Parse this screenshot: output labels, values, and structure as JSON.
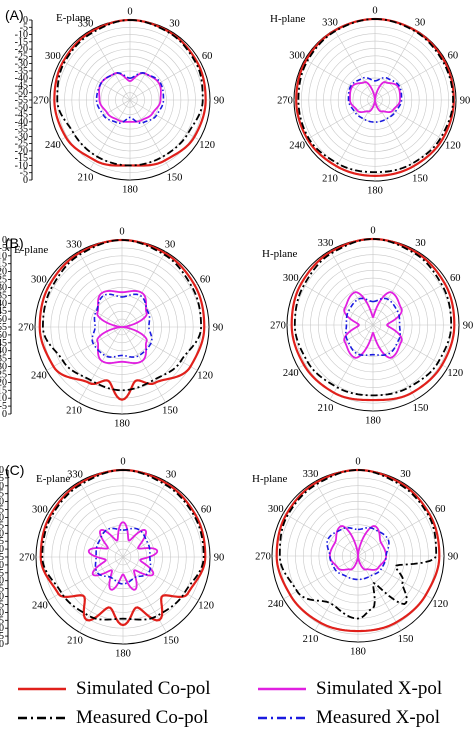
{
  "chart_data": [
    {
      "type": "polar",
      "panel": "(A)",
      "plane": "E-plane",
      "angle_labels": [
        "0",
        "30",
        "60",
        "90",
        "120",
        "150",
        "180",
        "210",
        "240",
        "270",
        "300",
        "330"
      ],
      "radial_ticks": [
        "0",
        "-5",
        "-10",
        "-15",
        "-20",
        "-25",
        "-30",
        "-35",
        "-40",
        "-45",
        "-50",
        "-55",
        "-50",
        "-45",
        "-40",
        "-35",
        "-30",
        "-25",
        "-20",
        "-15",
        "-10",
        "-5",
        "0"
      ],
      "rlim_db": [
        -55,
        0
      ],
      "series": [
        {
          "name": "Simulated Co-pol",
          "angles": [
            0,
            30,
            60,
            90,
            120,
            150,
            180,
            210,
            240,
            270,
            300,
            330
          ],
          "values_db": [
            0,
            -1,
            -2,
            -3,
            -4,
            -7,
            -10,
            -7,
            -4,
            -3,
            -2,
            -1
          ]
        },
        {
          "name": "Measured Co-pol",
          "angles": [
            0,
            30,
            60,
            90,
            120,
            150,
            180,
            210,
            240,
            270,
            300,
            330
          ],
          "values_db": [
            0,
            -1.5,
            -3,
            -5,
            -9,
            -10,
            -10,
            -10,
            -10,
            -5,
            -3,
            -2
          ]
        },
        {
          "name": "Simulated X-pol",
          "angles": [
            0,
            30,
            60,
            90,
            120,
            150,
            180,
            210,
            240,
            270,
            300,
            330
          ],
          "values_db": [
            -42,
            -34,
            -32,
            -34,
            -37,
            -39,
            -40,
            -39,
            -37,
            -34,
            -32,
            -34
          ]
        },
        {
          "name": "Measured X-pol",
          "angles": [
            0,
            30,
            60,
            90,
            120,
            150,
            180,
            210,
            240,
            270,
            300,
            330
          ],
          "values_db": [
            -40,
            -34,
            -31,
            -32,
            -34,
            -37,
            -43,
            -37,
            -34,
            -32,
            -32,
            -34
          ]
        }
      ]
    },
    {
      "type": "polar",
      "panel": "",
      "plane": "H-plane",
      "angle_labels": [
        "0",
        "30",
        "60",
        "90",
        "120",
        "150",
        "180",
        "210",
        "240",
        "270",
        "300",
        "330"
      ],
      "radial_ticks": [],
      "rlim_db": [
        -55,
        0
      ],
      "series": [
        {
          "name": "Simulated Co-pol",
          "angles": [
            0,
            30,
            60,
            90,
            120,
            150,
            180,
            210,
            240,
            270,
            300,
            330
          ],
          "values_db": [
            0,
            -0.5,
            -1,
            -1.5,
            -2,
            -3,
            -3.5,
            -3,
            -2,
            -1.5,
            -1,
            -0.5
          ]
        },
        {
          "name": "Measured Co-pol",
          "angles": [
            0,
            30,
            60,
            90,
            120,
            150,
            180,
            210,
            240,
            270,
            300,
            330
          ],
          "values_db": [
            0,
            -1,
            -2,
            -2,
            -3.5,
            -5,
            -6,
            -5,
            -3,
            -3,
            -2,
            -1
          ]
        },
        {
          "name": "Simulated X-pol",
          "angles": [
            0,
            30,
            60,
            90,
            120,
            150,
            180,
            210,
            240,
            270,
            300,
            330
          ],
          "values_db": [
            -55,
            -41,
            -37,
            -38,
            -41,
            -46,
            -55,
            -46,
            -41,
            -38,
            -37,
            -41
          ]
        },
        {
          "name": "Measured X-pol",
          "angles": [
            0,
            30,
            60,
            90,
            120,
            150,
            180,
            210,
            240,
            270,
            300,
            330
          ],
          "values_db": [
            -42,
            -38,
            -36,
            -37,
            -39,
            -40,
            -40,
            -40,
            -39,
            -37,
            -36,
            -38
          ]
        }
      ]
    },
    {
      "type": "polar",
      "panel": "(B)",
      "plane": "E-plane",
      "angle_labels": [
        "0",
        "30",
        "60",
        "90",
        "120",
        "150",
        "180",
        "210",
        "240",
        "270",
        "300",
        "330"
      ],
      "radial_ticks": [
        "0",
        "-5",
        "-10",
        "-15",
        "-20",
        "-25",
        "-30",
        "-35",
        "-40",
        "-45",
        "-50",
        "-55",
        "-50",
        "-45",
        "-40",
        "-35",
        "-30",
        "-25",
        "-20",
        "-15",
        "-10",
        "-5",
        "0"
      ],
      "rlim_db": [
        -55,
        0
      ],
      "series": [
        {
          "name": "Simulated Co-pol",
          "angles": [
            0,
            30,
            60,
            90,
            120,
            150,
            165,
            180,
            195,
            210,
            240,
            270,
            300,
            330
          ],
          "values_db": [
            0,
            -1,
            -2,
            -3,
            -5,
            -14,
            -20,
            -9,
            -20,
            -14,
            -5,
            -3,
            -2,
            -1
          ]
        },
        {
          "name": "Measured Co-pol",
          "angles": [
            0,
            30,
            60,
            90,
            120,
            150,
            180,
            210,
            240,
            270,
            300,
            330
          ],
          "values_db": [
            0,
            -2,
            -4,
            -5,
            -12,
            -16,
            -15,
            -16,
            -12,
            -5,
            -4,
            -2
          ]
        },
        {
          "name": "Simulated X-pol",
          "angles": [
            0,
            30,
            60,
            90,
            120,
            150,
            180,
            210,
            240,
            270,
            300,
            330
          ],
          "values_db": [
            -33,
            -30,
            -37,
            -55,
            -37,
            -30,
            -33,
            -30,
            -37,
            -55,
            -37,
            -30
          ]
        },
        {
          "name": "Measured X-pol",
          "angles": [
            0,
            30,
            60,
            90,
            120,
            150,
            180,
            210,
            240,
            270,
            300,
            330
          ],
          "values_db": [
            -36,
            -32,
            -36,
            -38,
            -34,
            -34,
            -37,
            -34,
            -34,
            -38,
            -36,
            -32
          ]
        }
      ]
    },
    {
      "type": "polar",
      "panel": "",
      "plane": "H-plane",
      "angle_labels": [
        "0",
        "30",
        "60",
        "90",
        "120",
        "150",
        "180",
        "210",
        "240",
        "270",
        "300",
        "330"
      ],
      "radial_ticks": [],
      "rlim_db": [
        -55,
        0
      ],
      "series": [
        {
          "name": "Simulated Co-pol",
          "angles": [
            0,
            30,
            60,
            90,
            120,
            150,
            180,
            210,
            240,
            270,
            300,
            330
          ],
          "values_db": [
            0,
            -1,
            -2,
            -3,
            -4,
            -5,
            -7,
            -5,
            -4,
            -3,
            -2,
            -1
          ]
        },
        {
          "name": "Measured Co-pol",
          "angles": [
            0,
            30,
            60,
            90,
            120,
            150,
            180,
            210,
            240,
            270,
            300,
            330
          ],
          "values_db": [
            0,
            -2,
            -4,
            -5,
            -7,
            -9,
            -10,
            -9,
            -7,
            -5,
            -4,
            -2
          ]
        },
        {
          "name": "Simulated X-pol",
          "angles": [
            0,
            30,
            60,
            90,
            120,
            150,
            180,
            210,
            240,
            270,
            300,
            330
          ],
          "values_db": [
            -50,
            -31,
            -34,
            -46,
            -34,
            -31,
            -50,
            -31,
            -34,
            -46,
            -34,
            -31
          ]
        },
        {
          "name": "Measured X-pol",
          "angles": [
            0,
            30,
            60,
            90,
            120,
            150,
            180,
            210,
            240,
            270,
            300,
            330
          ],
          "values_db": [
            -40,
            -36,
            -37,
            -38,
            -36,
            -34,
            -36,
            -34,
            -36,
            -38,
            -37,
            -36
          ]
        }
      ]
    },
    {
      "type": "polar",
      "panel": "(C)",
      "plane": "E-plane",
      "angle_labels": [
        "0",
        "30",
        "60",
        "90",
        "120",
        "150",
        "180",
        "210",
        "240",
        "270",
        "300",
        "330"
      ],
      "radial_ticks": [
        "0",
        "-5",
        "-10",
        "-15",
        "-20",
        "-25",
        "-30",
        "-35",
        "-40",
        "-45",
        "-50",
        "-55",
        "-50",
        "-45",
        "-40",
        "-35",
        "-30",
        "-25",
        "-20",
        "-15",
        "-10",
        "-5",
        "0"
      ],
      "rlim_db": [
        -55,
        0
      ],
      "series": [
        {
          "name": "Simulated Co-pol",
          "angles": [
            0,
            30,
            60,
            90,
            120,
            135,
            150,
            165,
            180,
            195,
            210,
            225,
            240,
            270,
            300,
            330
          ],
          "values_db": [
            0,
            -1,
            -2,
            -3,
            -8,
            -20,
            -9,
            -22,
            -12,
            -22,
            -9,
            -20,
            -8,
            -3,
            -2,
            -1
          ]
        },
        {
          "name": "Measured Co-pol",
          "angles": [
            0,
            30,
            60,
            90,
            120,
            150,
            180,
            210,
            240,
            270,
            300,
            330
          ],
          "values_db": [
            0,
            -2,
            -3,
            -4,
            -10,
            -12,
            -16,
            -12,
            -10,
            -4,
            -3,
            -2
          ]
        },
        {
          "name": "Simulated X-pol",
          "angles": [
            0,
            20,
            40,
            60,
            80,
            100,
            120,
            140,
            160,
            180,
            200,
            220,
            240,
            260,
            280,
            300,
            320,
            340
          ],
          "values_db": [
            -33,
            -44,
            -33,
            -44,
            -33,
            -44,
            -33,
            -44,
            -33,
            -44,
            -33,
            -44,
            -33,
            -44,
            -33,
            -44,
            -33,
            -44
          ]
        },
        {
          "name": "Measured X-pol",
          "angles": [
            0,
            30,
            60,
            90,
            120,
            150,
            180,
            210,
            240,
            270,
            300,
            330
          ],
          "values_db": [
            -38,
            -35,
            -37,
            -38,
            -36,
            -40,
            -38,
            -40,
            -36,
            -38,
            -37,
            -35
          ]
        }
      ]
    },
    {
      "type": "polar",
      "panel": "",
      "plane": "H-plane",
      "angle_labels": [
        "0",
        "30",
        "60",
        "90",
        "120",
        "150",
        "180",
        "210",
        "240",
        "270",
        "300",
        "330"
      ],
      "radial_ticks": [],
      "rlim_db": [
        -55,
        0
      ],
      "series": [
        {
          "name": "Simulated Co-pol",
          "angles": [
            0,
            30,
            60,
            90,
            120,
            150,
            180,
            210,
            240,
            270,
            300,
            330
          ],
          "values_db": [
            0,
            -1,
            -2,
            -3,
            -5,
            -6,
            -7,
            -6,
            -5,
            -3,
            -2,
            -1
          ]
        },
        {
          "name": "Measured Co-pol",
          "angles": [
            0,
            30,
            60,
            90,
            105,
            120,
            135,
            150,
            165,
            180,
            210,
            240,
            270,
            300,
            330
          ],
          "values_db": [
            0,
            -2,
            -3,
            -5,
            -30,
            -22,
            -12,
            -35,
            -20,
            -15,
            -20,
            -10,
            -5,
            -3,
            -2
          ]
        },
        {
          "name": "Simulated X-pol",
          "angles": [
            0,
            30,
            60,
            90,
            120,
            150,
            180,
            210,
            240,
            270,
            300,
            330
          ],
          "values_db": [
            -55,
            -33,
            -38,
            -37,
            -40,
            -45,
            -55,
            -45,
            -40,
            -37,
            -38,
            -33
          ]
        },
        {
          "name": "Measured X-pol",
          "angles": [
            0,
            30,
            60,
            90,
            120,
            150,
            180,
            210,
            240,
            270,
            300,
            330
          ],
          "values_db": [
            -38,
            -35,
            -33,
            -37,
            -38,
            -40,
            -40,
            -40,
            -38,
            -37,
            -33,
            -35
          ]
        }
      ]
    }
  ],
  "legend": [
    {
      "label": "Simulated Co-pol",
      "color": "#e0201b",
      "dash": "solid"
    },
    {
      "label": "Simulated X-pol",
      "color": "#e020e0",
      "dash": "solid"
    },
    {
      "label": "Measured Co-pol",
      "color": "#000000",
      "dash": "dashdot"
    },
    {
      "label": "Measured X-pol",
      "color": "#1a1ae0",
      "dash": "dashdot"
    }
  ],
  "colors": {
    "Simulated Co-pol": "#e0201b",
    "Measured Co-pol": "#000000",
    "Simulated X-pol": "#e020e0",
    "Measured X-pol": "#1a1ae0",
    "grid": "#c8c8c8"
  }
}
